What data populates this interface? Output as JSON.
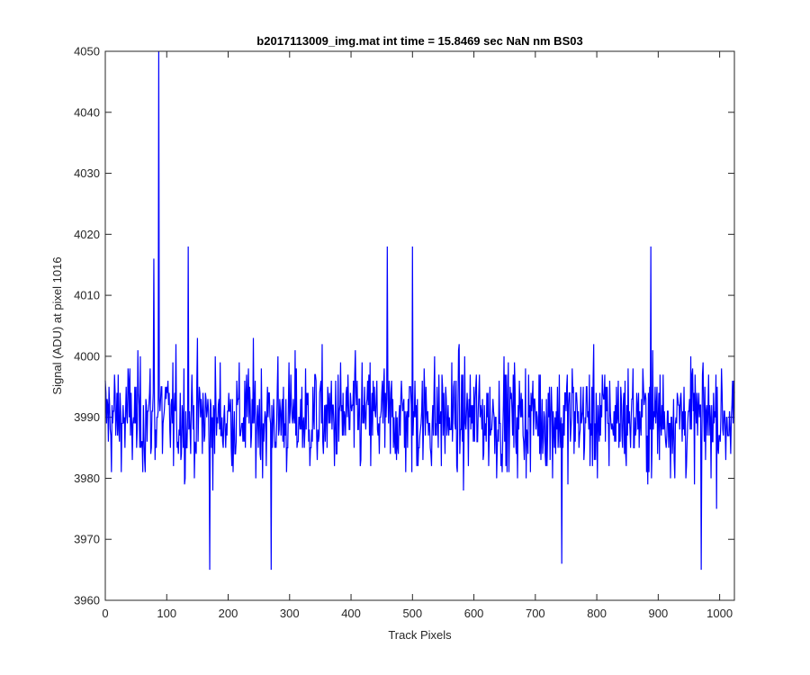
{
  "chart_data": {
    "type": "line",
    "title": "b2017113009_img.mat int time = 15.8469 sec  NaN nm BS03",
    "xlabel": "Track Pixels",
    "ylabel": "Signal (ADU) at pixel 1016",
    "xlim": [
      0,
      1024
    ],
    "ylim": [
      3960,
      4050
    ],
    "xticks": [
      0,
      100,
      200,
      300,
      400,
      500,
      600,
      700,
      800,
      900,
      1000
    ],
    "yticks": [
      3960,
      3970,
      3980,
      3990,
      4000,
      4010,
      4020,
      4030,
      4040,
      4050
    ],
    "grid": false,
    "line_color": "#0000ff",
    "noise_center": 3990,
    "key_points": [
      {
        "x": 87,
        "y": 4050
      },
      {
        "x": 79,
        "y": 4016
      },
      {
        "x": 135,
        "y": 4018
      },
      {
        "x": 459,
        "y": 4018
      },
      {
        "x": 500,
        "y": 4018
      },
      {
        "x": 888,
        "y": 4018
      },
      {
        "x": 170,
        "y": 3965
      },
      {
        "x": 270,
        "y": 3965
      },
      {
        "x": 743,
        "y": 3966
      },
      {
        "x": 970,
        "y": 3965
      }
    ],
    "series": [
      {
        "values_range": [
          3965,
          4050
        ]
      }
    ]
  }
}
